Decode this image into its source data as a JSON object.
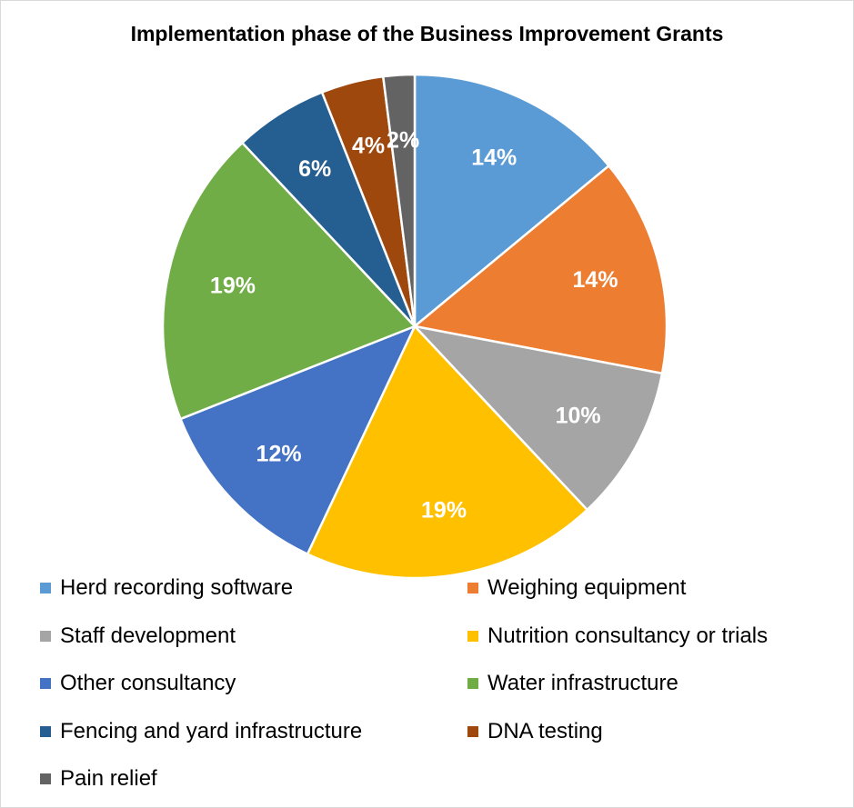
{
  "chart_data": {
    "type": "pie",
    "title": "Implementation phase of the Business Improvement Grants",
    "legend_position": "bottom",
    "slices": [
      {
        "label": "Herd recording software",
        "value": 14,
        "value_label": "14%",
        "color": "#5B9BD5"
      },
      {
        "label": "Weighing equipment",
        "value": 14,
        "value_label": "14%",
        "color": "#ED7D31"
      },
      {
        "label": "Staff development",
        "value": 10,
        "value_label": "10%",
        "color": "#A5A5A5"
      },
      {
        "label": "Nutrition consultancy or trials",
        "value": 19,
        "value_label": "19%",
        "color": "#FFC000"
      },
      {
        "label": "Other consultancy",
        "value": 12,
        "value_label": "12%",
        "color": "#4472C4"
      },
      {
        "label": "Water infrastructure",
        "value": 19,
        "value_label": "19%",
        "color": "#70AD47"
      },
      {
        "label": "Fencing and yard infrastructure",
        "value": 6,
        "value_label": "6%",
        "color": "#255E91"
      },
      {
        "label": "DNA testing",
        "value": 4,
        "value_label": "4%",
        "color": "#9E480E"
      },
      {
        "label": "Pain relief",
        "value": 2,
        "value_label": "2%",
        "color": "#636363"
      }
    ]
  }
}
